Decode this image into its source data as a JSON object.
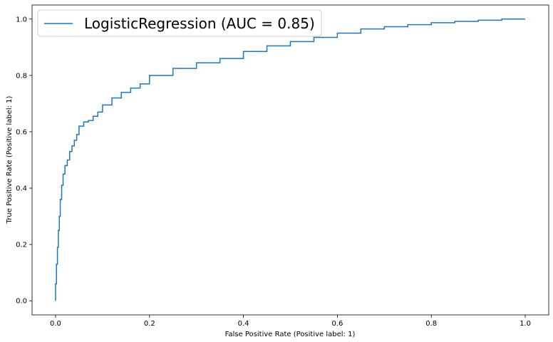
{
  "chart_data": {
    "type": "line",
    "title": "",
    "xlabel": "False Positive Rate (Positive label: 1)",
    "ylabel": "True Positive Rate (Positive label: 1)",
    "xlim": [
      -0.05,
      1.05
    ],
    "ylim": [
      -0.05,
      1.05
    ],
    "xticks": [
      0.0,
      0.2,
      0.4,
      0.6,
      0.8,
      1.0
    ],
    "xtick_labels": [
      "0.0",
      "0.2",
      "0.4",
      "0.6",
      "0.8",
      "1.0"
    ],
    "yticks": [
      0.0,
      0.2,
      0.4,
      0.6,
      0.8,
      1.0
    ],
    "ytick_labels": [
      "0.0",
      "0.2",
      "0.4",
      "0.6",
      "0.8",
      "1.0"
    ],
    "grid": false,
    "legend_position": "upper-left",
    "series": [
      {
        "name": "LogisticRegression (AUC = 0.85)",
        "color": "#1f77b4",
        "x": [
          0.0,
          0.002,
          0.004,
          0.006,
          0.008,
          0.01,
          0.013,
          0.016,
          0.02,
          0.025,
          0.03,
          0.035,
          0.04,
          0.045,
          0.05,
          0.06,
          0.07,
          0.08,
          0.09,
          0.1,
          0.12,
          0.14,
          0.16,
          0.18,
          0.2,
          0.25,
          0.3,
          0.35,
          0.4,
          0.45,
          0.5,
          0.55,
          0.6,
          0.65,
          0.7,
          0.75,
          0.8,
          0.85,
          0.9,
          0.95,
          1.0
        ],
        "y": [
          0.0,
          0.06,
          0.13,
          0.19,
          0.25,
          0.3,
          0.36,
          0.41,
          0.45,
          0.48,
          0.5,
          0.53,
          0.55,
          0.57,
          0.59,
          0.62,
          0.635,
          0.64,
          0.655,
          0.67,
          0.695,
          0.72,
          0.74,
          0.755,
          0.77,
          0.8,
          0.825,
          0.845,
          0.86,
          0.885,
          0.905,
          0.92,
          0.935,
          0.95,
          0.965,
          0.973,
          0.98,
          0.987,
          0.992,
          0.996,
          1.0
        ]
      }
    ]
  }
}
